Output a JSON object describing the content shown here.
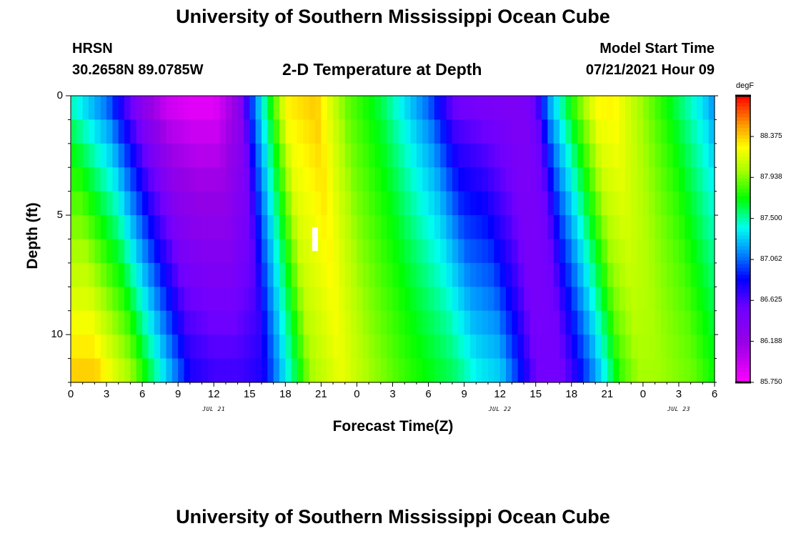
{
  "header": {
    "title": "University of Southern Mississippi Ocean Cube",
    "station": "HRSN",
    "coords": "30.2658N  89.0785W",
    "plot_title": "2-D Temperature at Depth",
    "model_label": "Model Start Time",
    "model_time": "07/21/2021 Hour 09"
  },
  "footer": {
    "title": "University of Southern Mississippi Ocean Cube"
  },
  "colorbar": {
    "unit": "degF",
    "labels": [
      "88.375",
      "87.938",
      "87.500",
      "87.062",
      "86.625",
      "86.188",
      "85.750"
    ],
    "min": 85.75,
    "max": 88.81
  },
  "chart_data": {
    "type": "heatmap",
    "title": "2-D Temperature at Depth",
    "xlabel": "Forecast Time(Z)",
    "ylabel": "Depth (ft)",
    "x_range_hours": [
      0,
      54
    ],
    "x_tick_labels": [
      "0",
      "3",
      "6",
      "9",
      "12",
      "15",
      "18",
      "21",
      "0",
      "3",
      "6",
      "9",
      "12",
      "15",
      "18",
      "21",
      "0",
      "3",
      "6"
    ],
    "date_labels": [
      {
        "hour": 12,
        "text": "JUL 21"
      },
      {
        "hour": 36,
        "text": "JUL 22"
      },
      {
        "hour": 51,
        "text": "JUL 23"
      }
    ],
    "y_range": [
      0,
      12
    ],
    "y_tick_labels": [
      "0",
      "5",
      "10"
    ],
    "y_tick_values": [
      0,
      5,
      10
    ],
    "marker": {
      "hour": 20.5,
      "depth_top": 5.5,
      "depth_bottom": 6.5
    },
    "series_keyframes": {
      "description": "temperature (degF) at surface (depth 0) and bottom (depth 12) at selected forecast hours",
      "hours": [
        0,
        3,
        6,
        8,
        10,
        12,
        14,
        15,
        16,
        18,
        20.5,
        23,
        26,
        28,
        30,
        32,
        34,
        36,
        37,
        38,
        39,
        40,
        42,
        44,
        45.5,
        47,
        50,
        53,
        54
      ],
      "surface": [
        87.4,
        87.0,
        86.2,
        85.9,
        85.8,
        85.8,
        86.2,
        86.9,
        87.4,
        88.3,
        88.4,
        87.9,
        87.6,
        87.3,
        87.0,
        86.5,
        86.4,
        86.4,
        86.4,
        86.4,
        86.6,
        87.2,
        87.8,
        88.3,
        88.3,
        88.1,
        87.7,
        87.3,
        87.1
      ],
      "bottom": [
        88.4,
        88.0,
        87.3,
        86.8,
        86.7,
        86.7,
        86.8,
        87.1,
        87.4,
        88.0,
        88.2,
        88.0,
        87.8,
        87.7,
        87.6,
        87.4,
        87.3,
        86.8,
        86.5,
        86.5,
        86.5,
        86.7,
        87.2,
        87.8,
        88.0,
        88.0,
        87.9,
        87.6,
        87.4
      ]
    }
  }
}
